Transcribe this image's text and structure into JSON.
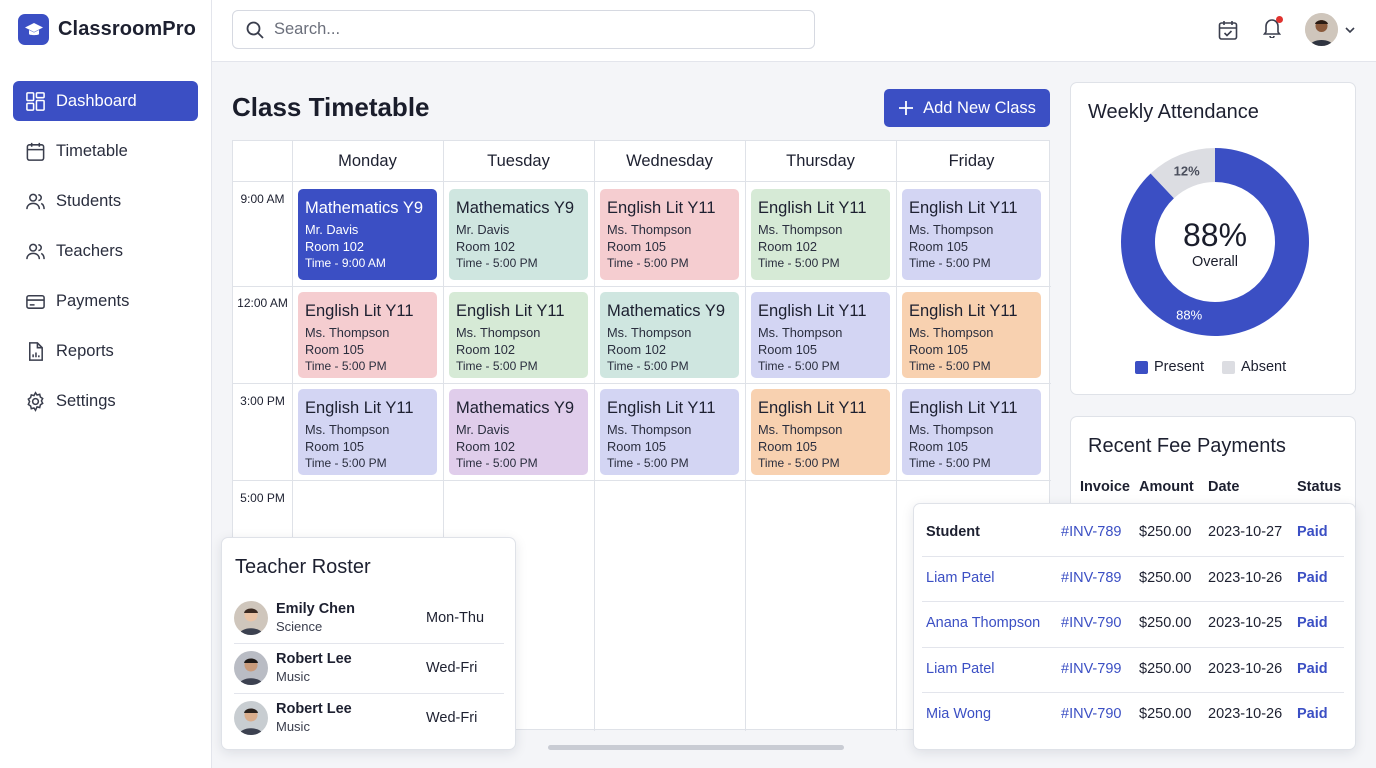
{
  "app": {
    "name": "ClassroomPro"
  },
  "sidebar": {
    "items": [
      {
        "label": "Dashboard",
        "icon": "dashboard-icon",
        "active": true
      },
      {
        "label": "Timetable",
        "icon": "calendar-icon"
      },
      {
        "label": "Students",
        "icon": "students-icon"
      },
      {
        "label": "Teachers",
        "icon": "teachers-icon"
      },
      {
        "label": "Payments",
        "icon": "credit-card-icon"
      },
      {
        "label": "Reports",
        "icon": "report-icon"
      },
      {
        "label": "Settings",
        "icon": "gear-icon"
      }
    ]
  },
  "search": {
    "placeholder": "Search..."
  },
  "page": {
    "title": "Class Timetable",
    "add_button": "Add New Class"
  },
  "timetable": {
    "days": [
      "Monday",
      "Tuesday",
      "Wednesday",
      "Thursday",
      "Friday"
    ],
    "times": [
      "9:00 AM",
      "12:00 AM",
      "3:00 PM",
      "5:00 PM"
    ],
    "rows": [
      [
        {
          "subject": "Mathematics Y9",
          "teacher": "Mr. Davis",
          "room": "Room 102",
          "time": "Time - 9:00 AM",
          "color": "blue"
        },
        {
          "subject": "Mathematics Y9",
          "teacher": "Mr. Davis",
          "room": "Room 102",
          "time": "Time - 5:00 PM",
          "color": "teal"
        },
        {
          "subject": "English Lit Y11",
          "teacher": "Ms. Thompson",
          "room": "Room 105",
          "time": "Time - 5:00 PM",
          "color": "pink"
        },
        {
          "subject": "English Lit Y11",
          "teacher": "Ms. Thompson",
          "room": "Room 102",
          "time": "Time - 5:00 PM",
          "color": "green"
        },
        {
          "subject": "English Lit Y11",
          "teacher": "Ms. Thompson",
          "room": "Room 105",
          "time": "Time - 5:00 PM",
          "color": "lav"
        }
      ],
      [
        {
          "subject": "English Lit Y11",
          "teacher": "Ms. Thompson",
          "room": "Room 105",
          "time": "Time - 5:00 PM",
          "color": "pink"
        },
        {
          "subject": "English Lit Y11",
          "teacher": "Ms. Thompson",
          "room": "Room 102",
          "time": "Time - 5:00 PM",
          "color": "green"
        },
        {
          "subject": "Mathematics Y9",
          "teacher": "Ms. Thompson",
          "room": "Room 102",
          "time": "Time - 5:00 PM",
          "color": "teal"
        },
        {
          "subject": "English Lit Y11",
          "teacher": "Ms. Thompson",
          "room": "Room 105",
          "time": "Time - 5:00 PM",
          "color": "lav"
        },
        {
          "subject": "English Lit Y11",
          "teacher": "Ms. Thompson",
          "room": "Room 105",
          "time": "Time - 5:00 PM",
          "color": "peach"
        }
      ],
      [
        {
          "subject": "English Lit Y11",
          "teacher": "Ms. Thompson",
          "room": "Room 105",
          "time": "Time - 5:00 PM",
          "color": "lav"
        },
        {
          "subject": "Mathematics Y9",
          "teacher": "Mr. Davis",
          "room": "Room 102",
          "time": "Time - 5:00 PM",
          "color": "purple"
        },
        {
          "subject": "English Lit Y11",
          "teacher": "Ms. Thompson",
          "room": "Room 105",
          "time": "Time - 5:00 PM",
          "color": "lav"
        },
        {
          "subject": "English Lit Y11",
          "teacher": "Ms. Thompson",
          "room": "Room 105",
          "time": "Time - 5:00 PM",
          "color": "peach"
        },
        {
          "subject": "English Lit Y11",
          "teacher": "Ms. Thompson",
          "room": "Room 105",
          "time": "Time - 5:00 PM",
          "color": "lav"
        }
      ]
    ]
  },
  "roster": {
    "title": "Teacher Roster",
    "teachers": [
      {
        "name": "Emily Chen",
        "subject": "Science",
        "days": "Mon-Thu"
      },
      {
        "name": "Robert Lee",
        "subject": "Music",
        "days": "Wed-Fri"
      },
      {
        "name": "Robert Lee",
        "subject": "Music",
        "days": "Wed-Fri"
      }
    ]
  },
  "attendance": {
    "title": "Weekly Attendance",
    "center_value": "88%",
    "center_label": "Overall",
    "present_label": "88%",
    "absent_label": "12%",
    "present_pct": 88,
    "absent_pct": 12,
    "legend": [
      "Present",
      "Absent"
    ],
    "colors": {
      "present": "#3b4fc4",
      "absent": "#dcdde2"
    }
  },
  "fees": {
    "title": "Recent Fee Payments",
    "columns": [
      "Invoice",
      "Amount",
      "Date",
      "Status"
    ],
    "student_header": "Student",
    "rows": [
      {
        "student": "",
        "invoice": "#INV-789",
        "amount": "$250.00",
        "date": "2023-10-27",
        "status": "Paid"
      },
      {
        "student": "Liam Patel",
        "invoice": "#INV-789",
        "amount": "$250.00",
        "date": "2023-10-26",
        "status": "Paid"
      },
      {
        "student": "Anana Thompson",
        "invoice": "#INV-790",
        "amount": "$250.00",
        "date": "2023-10-25",
        "status": "Paid"
      },
      {
        "student": "Liam Patel",
        "invoice": "#INV-799",
        "amount": "$250.00",
        "date": "2023-10-26",
        "status": "Paid"
      },
      {
        "student": "Mia Wong",
        "invoice": "#INV-790",
        "amount": "$250.00",
        "date": "2023-10-26",
        "status": "Paid"
      }
    ]
  }
}
